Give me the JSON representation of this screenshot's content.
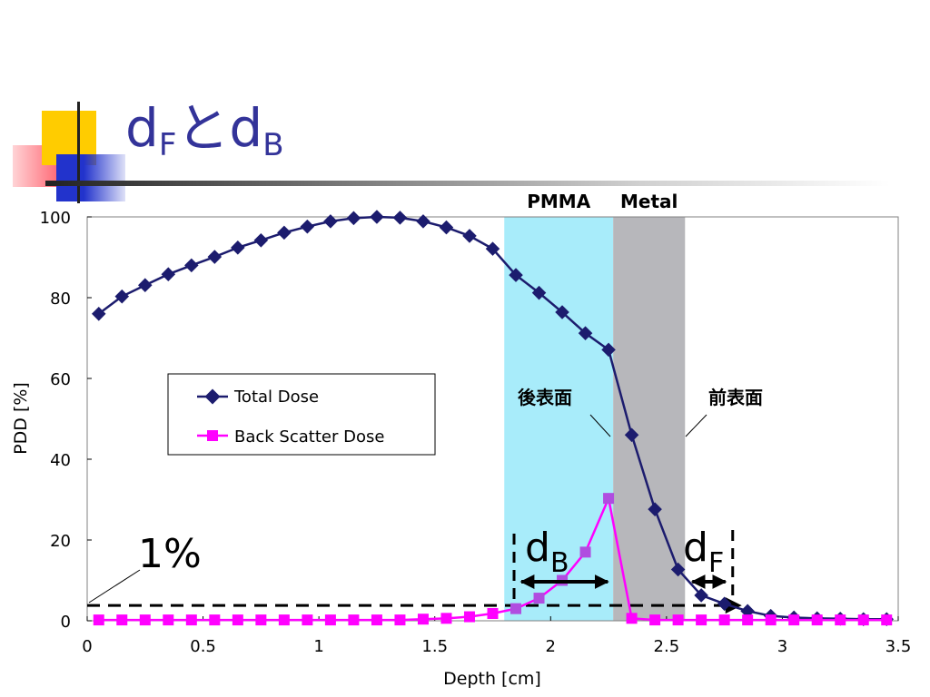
{
  "slide": {
    "title_main": "d",
    "title_sub1": "F",
    "title_mid": "とd",
    "title_sub2": "B"
  },
  "chart_data": {
    "type": "line",
    "title": "",
    "xlabel": "Depth [cm]",
    "ylabel": "PDD [%]",
    "xlim": [
      0,
      3.5
    ],
    "ylim": [
      0,
      100
    ],
    "xticks": [
      "0",
      "0.5",
      "1",
      "1.5",
      "2",
      "2.5",
      "3",
      "3.5"
    ],
    "yticks": [
      "0",
      "20",
      "40",
      "60",
      "80",
      "100"
    ],
    "regions": [
      {
        "label": "PMMA",
        "x0": 1.8,
        "x1": 2.27,
        "color": "#a8ecfa"
      },
      {
        "label": "Metal",
        "x0": 2.27,
        "x1": 2.58,
        "color": "#b7b7bb"
      }
    ],
    "series": [
      {
        "name": "Total Dose",
        "color": "#1c1c6e",
        "marker": "diamond",
        "x": [
          0.05,
          0.15,
          0.25,
          0.35,
          0.45,
          0.55,
          0.65,
          0.75,
          0.85,
          0.95,
          1.05,
          1.15,
          1.25,
          1.35,
          1.45,
          1.55,
          1.65,
          1.75,
          1.85,
          1.95,
          2.05,
          2.15,
          2.25,
          2.35,
          2.45,
          2.55,
          2.65,
          2.75,
          2.85,
          2.95,
          3.05,
          3.15,
          3.25,
          3.35,
          3.45
        ],
        "y": [
          76,
          80.3,
          83.1,
          85.8,
          88,
          90.1,
          92.4,
          94.2,
          96.1,
          97.6,
          98.9,
          99.7,
          100,
          99.8,
          98.9,
          97.4,
          95.3,
          92.1,
          85.6,
          81.2,
          76.4,
          71.2,
          67.1,
          46,
          27.6,
          12.7,
          6.3,
          4.2,
          2.4,
          1.2,
          0.8,
          0.6,
          0.5,
          0.4,
          0.4
        ]
      },
      {
        "name": "Back Scatter Dose",
        "color": "#ff00ff",
        "marker": "square",
        "x": [
          0.05,
          0.15,
          0.25,
          0.35,
          0.45,
          0.55,
          0.65,
          0.75,
          0.85,
          0.95,
          1.05,
          1.15,
          1.25,
          1.35,
          1.45,
          1.55,
          1.65,
          1.75,
          1.85,
          1.95,
          2.05,
          2.15,
          2.25,
          2.35,
          2.45,
          2.55,
          2.65,
          2.75,
          2.85,
          2.95,
          3.05,
          3.15,
          3.25,
          3.35,
          3.45
        ],
        "y": [
          0.2,
          0.2,
          0.2,
          0.2,
          0.2,
          0.2,
          0.2,
          0.2,
          0.2,
          0.2,
          0.2,
          0.2,
          0.2,
          0.2,
          0.4,
          0.6,
          1,
          1.8,
          3,
          5.6,
          10,
          17,
          30.3,
          0.6,
          0.2,
          0.2,
          0.2,
          0.2,
          0.2,
          0.2,
          0.2,
          0.2,
          0.2,
          0.2,
          0.2
        ]
      }
    ],
    "legend": {
      "position": "middle-left",
      "entries": [
        "Total Dose",
        "Back Scatter Dose"
      ]
    },
    "annotations": {
      "back_surface": "後表面",
      "front_surface": "前表面",
      "one_percent": "1%",
      "dB_main": "d",
      "dB_sub": "B",
      "dF_main": "d",
      "dF_sub": "F",
      "threshold_y": 3.8,
      "dB_range": [
        1.85,
        2.27
      ],
      "dF_range": [
        2.58,
        2.77
      ]
    },
    "grid": false
  }
}
